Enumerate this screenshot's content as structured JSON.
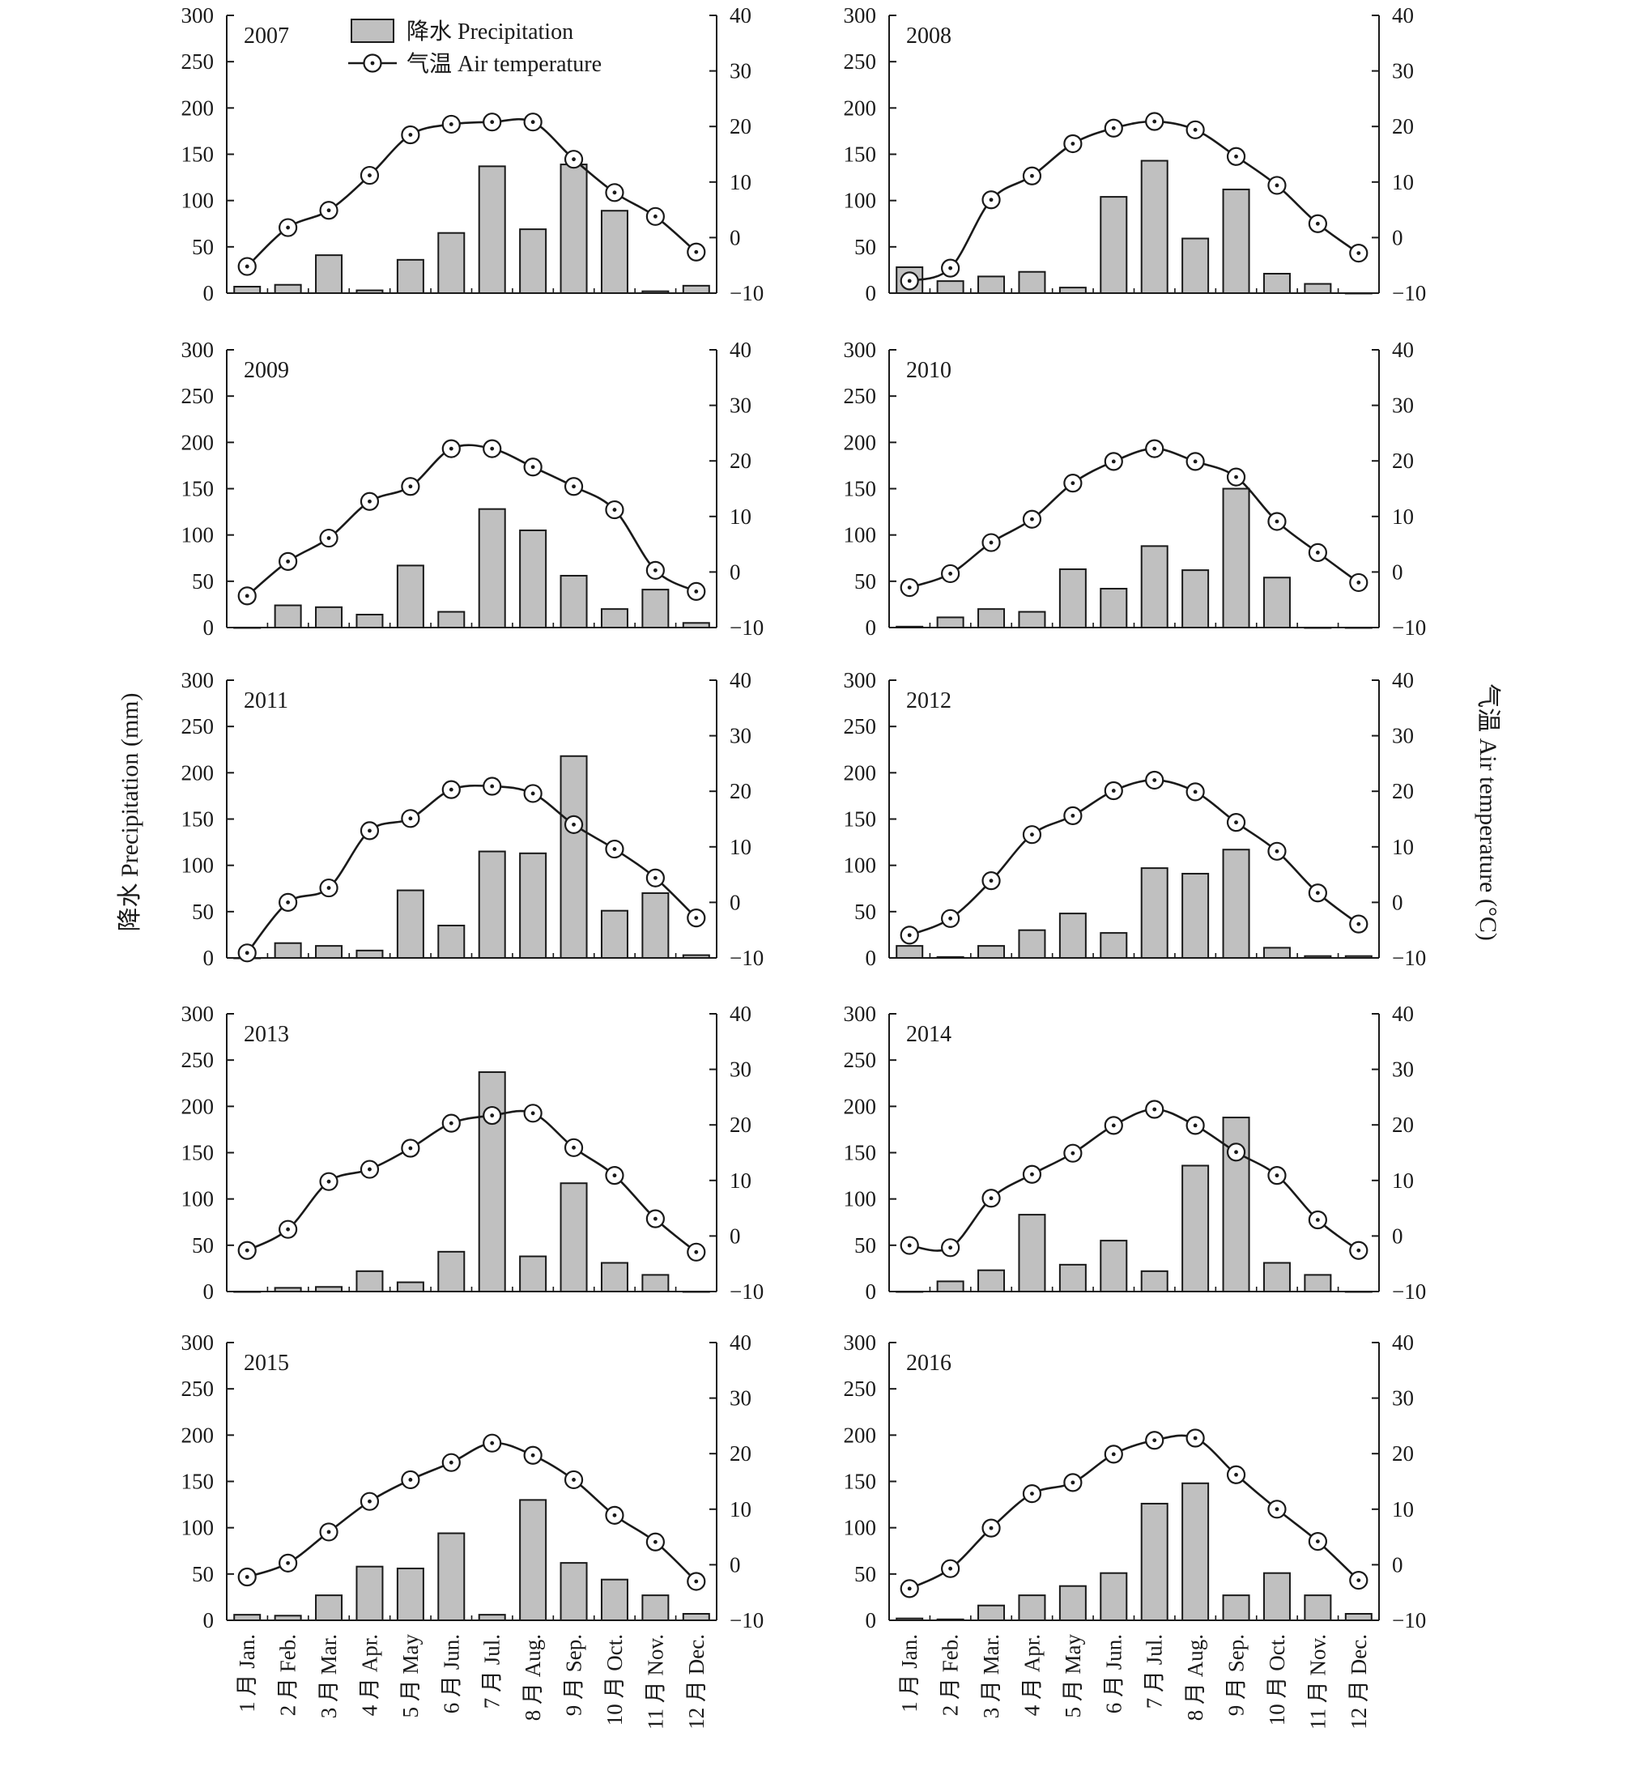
{
  "figure": {
    "y_left_title": "降水 Precipitation (mm)",
    "y_right_title": "气温 Air temperature (°C)",
    "legend": {
      "bar_label": "降水 Precipitation",
      "line_label": "气温 Air temperature"
    }
  },
  "months": [
    "1 月 Jan.",
    "2 月 Feb.",
    "3 月 Mar.",
    "4 月 Apr.",
    "5 月 May",
    "6 月 Jun.",
    "7 月 Jul.",
    "8 月 Aug.",
    "9 月 Sep.",
    "10 月 Oct.",
    "11 月 Nov.",
    "12 月 Dec."
  ],
  "left_ticks": [
    "0",
    "50",
    "100",
    "150",
    "200",
    "250",
    "300"
  ],
  "right_ticks": [
    "−10",
    "0",
    "10",
    "20",
    "30",
    "40"
  ],
  "colors": {
    "bar_fill": "#c0c0c0",
    "stroke": "#1a1a1a"
  },
  "chart_data": [
    {
      "type": "bar+line",
      "title": "2007",
      "categories": [
        "1 月 Jan.",
        "2 月 Feb.",
        "3 月 Mar.",
        "4 月 Apr.",
        "5 月 May",
        "6 月 Jun.",
        "7 月 Jul.",
        "8 月 Aug.",
        "9 月 Sep.",
        "10 月 Oct.",
        "11 月 Nov.",
        "12 月 Dec."
      ],
      "ylim_left": [
        0,
        300
      ],
      "ylim_right": [
        -10,
        40
      ],
      "series": [
        {
          "name": "降水 Precipitation",
          "type": "bar",
          "axis": "left",
          "values": [
            7,
            9,
            41,
            3,
            36,
            65,
            137,
            69,
            139,
            89,
            2,
            8
          ]
        },
        {
          "name": "气温 Air temperature",
          "type": "line",
          "axis": "right",
          "values": [
            -5.2,
            1.8,
            4.9,
            11.2,
            18.5,
            20.4,
            20.8,
            20.8,
            14.1,
            8.1,
            3.8,
            -2.6
          ]
        }
      ]
    },
    {
      "type": "bar+line",
      "title": "2008",
      "categories": [
        "1 月 Jan.",
        "2 月 Feb.",
        "3 月 Mar.",
        "4 月 Apr.",
        "5 月 May",
        "6 月 Jun.",
        "7 月 Jul.",
        "8 月 Aug.",
        "9 月 Sep.",
        "10 月 Oct.",
        "11 月 Nov.",
        "12 月 Dec."
      ],
      "ylim_left": [
        0,
        300
      ],
      "ylim_right": [
        -10,
        40
      ],
      "series": [
        {
          "name": "降水 Precipitation",
          "type": "bar",
          "axis": "left",
          "values": [
            28,
            13,
            18,
            23,
            6,
            104,
            143,
            59,
            112,
            21,
            10,
            0
          ]
        },
        {
          "name": "气温 Air temperature",
          "type": "line",
          "axis": "right",
          "values": [
            -7.8,
            -5.5,
            6.8,
            11.1,
            16.9,
            19.7,
            20.9,
            19.4,
            14.6,
            9.4,
            2.5,
            -2.8
          ]
        }
      ]
    },
    {
      "type": "bar+line",
      "title": "2009",
      "categories": [
        "1 月 Jan.",
        "2 月 Feb.",
        "3 月 Mar.",
        "4 月 Apr.",
        "5 月 May",
        "6 月 Jun.",
        "7 月 Jul.",
        "8 月 Aug.",
        "9 月 Sep.",
        "10 月 Oct.",
        "11 月 Nov.",
        "12 月 Dec."
      ],
      "ylim_left": [
        0,
        300
      ],
      "ylim_right": [
        -10,
        40
      ],
      "series": [
        {
          "name": "降水 Precipitation",
          "type": "bar",
          "axis": "left",
          "values": [
            0,
            24,
            22,
            14,
            67,
            17,
            128,
            105,
            56,
            20,
            41,
            5
          ]
        },
        {
          "name": "气温 Air temperature",
          "type": "line",
          "axis": "right",
          "values": [
            -4.3,
            1.9,
            6.1,
            12.7,
            15.4,
            22.2,
            22.2,
            18.9,
            15.4,
            11.2,
            0.3,
            -3.5
          ]
        }
      ]
    },
    {
      "type": "bar+line",
      "title": "2010",
      "categories": [
        "1 月 Jan.",
        "2 月 Feb.",
        "3 月 Mar.",
        "4 月 Apr.",
        "5 月 May",
        "6 月 Jun.",
        "7 月 Jul.",
        "8 月 Aug.",
        "9 月 Sep.",
        "10 月 Oct.",
        "11 月 Nov.",
        "12 月 Dec."
      ],
      "ylim_left": [
        0,
        300
      ],
      "ylim_right": [
        -10,
        40
      ],
      "series": [
        {
          "name": "降水 Precipitation",
          "type": "bar",
          "axis": "left",
          "values": [
            1,
            11,
            20,
            17,
            63,
            42,
            88,
            62,
            150,
            54,
            0,
            0
          ]
        },
        {
          "name": "气温 Air temperature",
          "type": "line",
          "axis": "right",
          "values": [
            -2.8,
            -0.3,
            5.3,
            9.5,
            16.0,
            19.9,
            22.2,
            19.9,
            17.1,
            9.1,
            3.5,
            -1.9
          ]
        }
      ]
    },
    {
      "type": "bar+line",
      "title": "2011",
      "categories": [
        "1 月 Jan.",
        "2 月 Feb.",
        "3 月 Mar.",
        "4 月 Apr.",
        "5 月 May",
        "6 月 Jun.",
        "7 月 Jul.",
        "8 月 Aug.",
        "9 月 Sep.",
        "10 月 Oct.",
        "11 月 Nov.",
        "12 月 Dec."
      ],
      "ylim_left": [
        0,
        300
      ],
      "ylim_right": [
        -10,
        40
      ],
      "series": [
        {
          "name": "降水 Precipitation",
          "type": "bar",
          "axis": "left",
          "values": [
            0,
            16,
            13,
            8,
            73,
            35,
            115,
            113,
            218,
            51,
            70,
            3
          ]
        },
        {
          "name": "气温 Air temperature",
          "type": "line",
          "axis": "right",
          "values": [
            -9.1,
            0.0,
            2.6,
            12.9,
            15.1,
            20.3,
            20.9,
            19.6,
            14.0,
            9.6,
            4.4,
            -2.8
          ]
        }
      ]
    },
    {
      "type": "bar+line",
      "title": "2012",
      "categories": [
        "1 月 Jan.",
        "2 月 Feb.",
        "3 月 Mar.",
        "4 月 Apr.",
        "5 月 May",
        "6 月 Jun.",
        "7 月 Jul.",
        "8 月 Aug.",
        "9 月 Sep.",
        "10 月 Oct.",
        "11 月 Nov.",
        "12 月 Dec."
      ],
      "ylim_left": [
        0,
        300
      ],
      "ylim_right": [
        -10,
        40
      ],
      "series": [
        {
          "name": "降水 Precipitation",
          "type": "bar",
          "axis": "left",
          "values": [
            13,
            1,
            13,
            30,
            48,
            27,
            97,
            91,
            117,
            11,
            2,
            2
          ]
        },
        {
          "name": "气温 Air temperature",
          "type": "line",
          "axis": "right",
          "values": [
            -5.9,
            -2.9,
            3.9,
            12.2,
            15.6,
            20.1,
            22.0,
            19.9,
            14.4,
            9.2,
            1.7,
            -3.9
          ]
        }
      ]
    },
    {
      "type": "bar+line",
      "title": "2013",
      "categories": [
        "1 月 Jan.",
        "2 月 Feb.",
        "3 月 Mar.",
        "4 月 Apr.",
        "5 月 May",
        "6 月 Jun.",
        "7 月 Jul.",
        "8 月 Aug.",
        "9 月 Sep.",
        "10 月 Oct.",
        "11 月 Nov.",
        "12 月 Dec."
      ],
      "ylim_left": [
        0,
        300
      ],
      "ylim_right": [
        -10,
        40
      ],
      "series": [
        {
          "name": "降水 Precipitation",
          "type": "bar",
          "axis": "left",
          "values": [
            0,
            4,
            5,
            22,
            10,
            43,
            237,
            38,
            117,
            31,
            18,
            0
          ]
        },
        {
          "name": "气温 Air temperature",
          "type": "line",
          "axis": "right",
          "values": [
            -2.6,
            1.2,
            9.8,
            12.0,
            15.8,
            20.3,
            21.7,
            22.1,
            15.9,
            10.9,
            3.1,
            -2.9
          ]
        }
      ]
    },
    {
      "type": "bar+line",
      "title": "2014",
      "categories": [
        "1 月 Jan.",
        "2 月 Feb.",
        "3 月 Mar.",
        "4 月 Apr.",
        "5 月 May",
        "6 月 Jun.",
        "7 月 Jul.",
        "8 月 Aug.",
        "9 月 Sep.",
        "10 月 Oct.",
        "11 月 Nov.",
        "12 月 Dec."
      ],
      "ylim_left": [
        0,
        300
      ],
      "ylim_right": [
        -10,
        40
      ],
      "series": [
        {
          "name": "降水 Precipitation",
          "type": "bar",
          "axis": "left",
          "values": [
            0,
            11,
            23,
            83,
            29,
            55,
            22,
            136,
            188,
            31,
            18,
            0
          ]
        },
        {
          "name": "气温 Air temperature",
          "type": "line",
          "axis": "right",
          "values": [
            -1.7,
            -2.1,
            6.8,
            11.1,
            14.9,
            19.9,
            22.8,
            19.9,
            15.1,
            10.9,
            2.9,
            -2.6
          ]
        }
      ]
    },
    {
      "type": "bar+line",
      "title": "2015",
      "categories": [
        "1 月 Jan.",
        "2 月 Feb.",
        "3 月 Mar.",
        "4 月 Apr.",
        "5 月 May",
        "6 月 Jun.",
        "7 月 Jul.",
        "8 月 Aug.",
        "9 月 Sep.",
        "10 月 Oct.",
        "11 月 Nov.",
        "12 月 Dec."
      ],
      "ylim_left": [
        0,
        300
      ],
      "ylim_right": [
        -10,
        40
      ],
      "series": [
        {
          "name": "降水 Precipitation",
          "type": "bar",
          "axis": "left",
          "values": [
            6,
            5,
            27,
            58,
            56,
            94,
            6,
            130,
            62,
            44,
            27,
            7
          ]
        },
        {
          "name": "气温 Air temperature",
          "type": "line",
          "axis": "right",
          "values": [
            -2.2,
            0.3,
            5.9,
            11.4,
            15.3,
            18.4,
            21.9,
            19.7,
            15.3,
            8.9,
            4.1,
            -3.0
          ]
        }
      ]
    },
    {
      "type": "bar+line",
      "title": "2016",
      "categories": [
        "1 月 Jan.",
        "2 月 Feb.",
        "3 月 Mar.",
        "4 月 Apr.",
        "5 月 May",
        "6 月 Jun.",
        "7 月 Jul.",
        "8 月 Aug.",
        "9 月 Sep.",
        "10 月 Oct.",
        "11 月 Nov.",
        "12 月 Dec."
      ],
      "ylim_left": [
        0,
        300
      ],
      "ylim_right": [
        -10,
        40
      ],
      "series": [
        {
          "name": "降水 Precipitation",
          "type": "bar",
          "axis": "left",
          "values": [
            2,
            1,
            16,
            27,
            37,
            51,
            126,
            148,
            27,
            51,
            27,
            7
          ]
        },
        {
          "name": "气温 Air temperature",
          "type": "line",
          "axis": "right",
          "values": [
            -4.3,
            -0.7,
            6.6,
            12.8,
            14.8,
            19.9,
            22.4,
            22.8,
            16.2,
            10.0,
            4.2,
            -2.8
          ]
        }
      ]
    }
  ]
}
